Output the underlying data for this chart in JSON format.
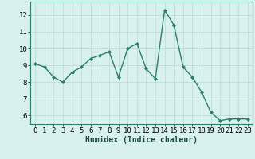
{
  "x": [
    0,
    1,
    2,
    3,
    4,
    5,
    6,
    7,
    8,
    9,
    10,
    11,
    12,
    13,
    14,
    15,
    16,
    17,
    18,
    19,
    20,
    21,
    22,
    23
  ],
  "y": [
    9.1,
    8.9,
    8.3,
    8.0,
    8.6,
    8.9,
    9.4,
    9.6,
    9.8,
    8.3,
    10.0,
    10.3,
    8.8,
    8.2,
    12.3,
    11.4,
    8.9,
    8.3,
    7.4,
    6.2,
    5.7,
    5.8,
    5.8,
    5.8
  ],
  "line_color": "#2e7d6e",
  "marker": "D",
  "marker_size": 2,
  "bg_color": "#d8f0ee",
  "grid_color": "#b8d8d4",
  "xlabel": "Humidex (Indice chaleur)",
  "ylim": [
    5.5,
    12.8
  ],
  "xlim": [
    -0.5,
    23.5
  ],
  "yticks": [
    6,
    7,
    8,
    9,
    10,
    11,
    12
  ],
  "xticks": [
    0,
    1,
    2,
    3,
    4,
    5,
    6,
    7,
    8,
    9,
    10,
    11,
    12,
    13,
    14,
    15,
    16,
    17,
    18,
    19,
    20,
    21,
    22,
    23
  ],
  "xlabel_fontsize": 7,
  "tick_fontsize": 6.5,
  "line_width": 1.0,
  "spine_color": "#2e7d6e"
}
